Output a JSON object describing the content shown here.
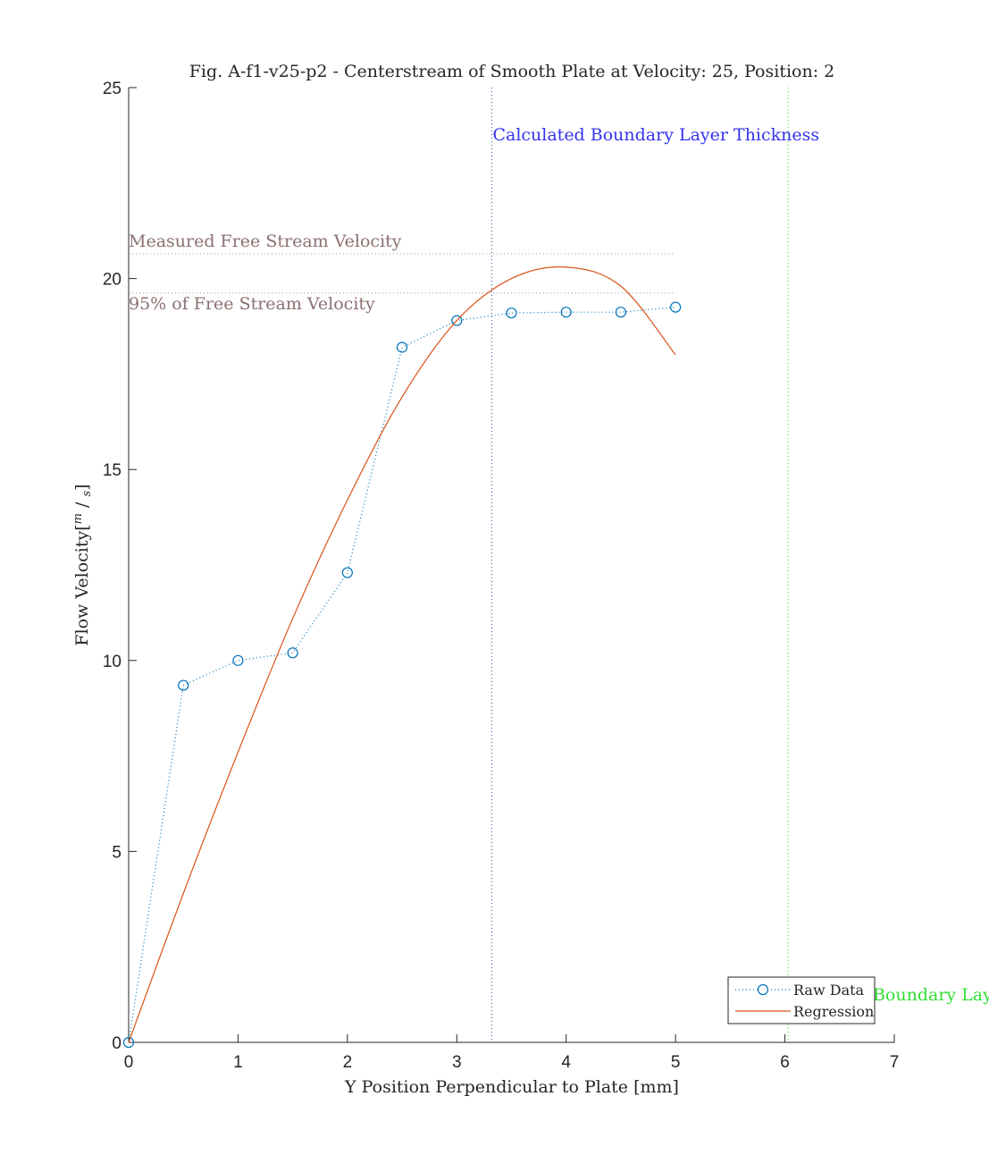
{
  "chart_data": {
    "type": "line",
    "title": "Fig. A-f1-v25-p2 - Centerstream of Smooth Plate at Velocity: 25, Position: 2",
    "xlabel": "Y Position Perpendicular to Plate [mm]",
    "ylabel": "Flow Velocity",
    "ylabel_unit_num": "m",
    "ylabel_unit_den": "s",
    "xlim": [
      0,
      7
    ],
    "ylim": [
      0,
      25
    ],
    "xticks": [
      "0",
      "1",
      "2",
      "3",
      "4",
      "5",
      "6",
      "7"
    ],
    "yticks": [
      "0",
      "5",
      "10",
      "15",
      "20",
      "25"
    ],
    "grid": false,
    "legend_position": "bottom-right",
    "series": [
      {
        "name": "Raw Data",
        "style": "dotted-with-circle-markers",
        "color": "#0072BD",
        "x": [
          0,
          0.5,
          1,
          1.5,
          2,
          2.5,
          3,
          3.5,
          4,
          4.5,
          5
        ],
        "y": [
          0,
          9.35,
          10.0,
          10.2,
          12.3,
          18.2,
          18.9,
          19.1,
          19.12,
          19.12,
          19.25
        ]
      },
      {
        "name": "Regression",
        "style": "solid",
        "color": "#D95319",
        "x": [
          0,
          0.5,
          1,
          1.5,
          2,
          2.5,
          3,
          3.5,
          4,
          4.5,
          5
        ],
        "y": [
          0,
          3.9,
          7.6,
          11.1,
          14.2,
          16.9,
          18.9,
          20.0,
          20.3,
          19.8,
          18.0
        ]
      }
    ],
    "reference_lines": [
      {
        "label": "Measured Free Stream Velocity",
        "orientation": "horizontal",
        "value": 20.65,
        "x_end": 5,
        "color": "#8c7070"
      },
      {
        "label": "95% of Free Stream Velocity",
        "orientation": "horizontal",
        "value": 19.62,
        "x_end": 5,
        "color": "#8c7070"
      },
      {
        "label": "Calculated Boundary Layer Thickness",
        "orientation": "vertical",
        "value": 3.32,
        "color": "#3333ee",
        "line_color": "#3b4a8a"
      },
      {
        "label": "Theoretical Boundary Layer Thickness",
        "orientation": "vertical",
        "value": 6.03,
        "color": "#33dd33"
      }
    ]
  }
}
